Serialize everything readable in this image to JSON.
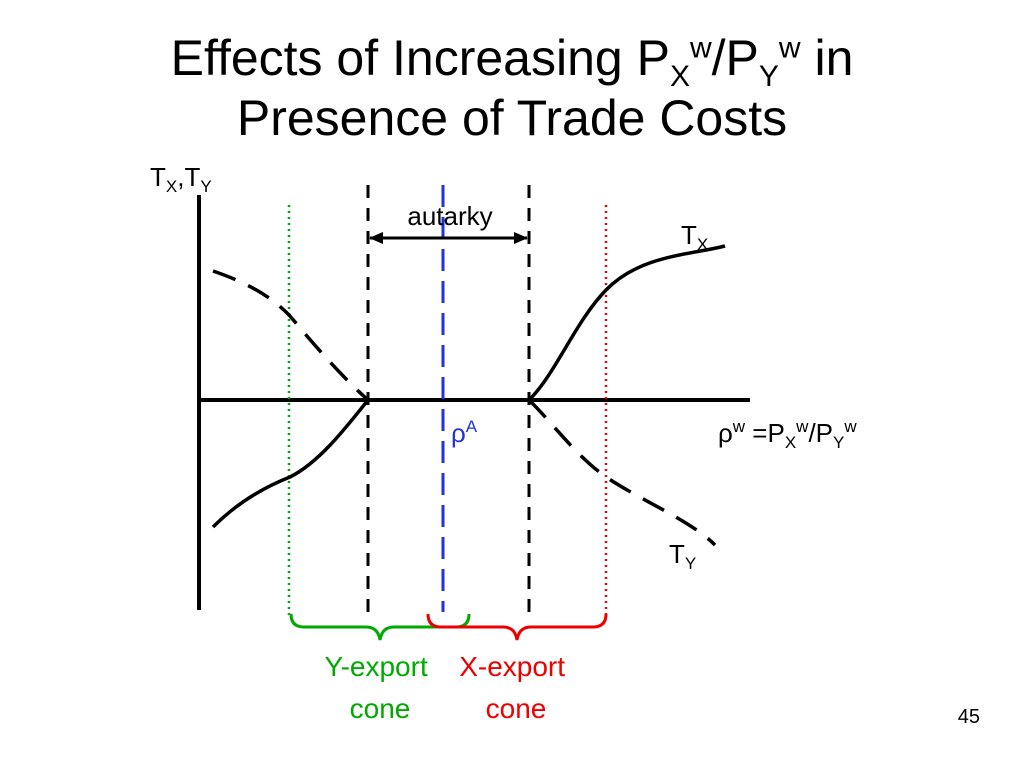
{
  "title": {
    "line1_pre": "Effects of Increasing P",
    "px_sub": "X",
    "px_sup": "w",
    "slash": "/P",
    "py_sub": "Y",
    "py_sup": "w",
    "line1_post": " in",
    "line2": "Presence of Trade Costs"
  },
  "diagram": {
    "y_axis_label": {
      "t1": "T",
      "s1": "X",
      "comma": ",T",
      "s2": "Y"
    },
    "x_axis_label": {
      "rho": "ρ",
      "rho_sup": "w",
      "eq": " =P",
      "s1": "X",
      "sup1": "w",
      "slash": "/P",
      "s2": "Y",
      "sup2": "w"
    },
    "autarky_label": "autarky",
    "rho_a_label": {
      "rho": "ρ",
      "sup": "A"
    },
    "tx_label": {
      "t": "T",
      "sub": "X"
    },
    "ty_label": {
      "t": "T",
      "sub": "Y"
    },
    "y_cone_label": [
      "Y-export",
      "cone"
    ],
    "x_cone_label": [
      "X-export",
      "cone"
    ]
  },
  "colors": {
    "axis": "#000000",
    "y_cone": "#00aa00",
    "x_cone": "#ee0000",
    "rho_a": "#2233dd"
  },
  "slide_number": "45"
}
